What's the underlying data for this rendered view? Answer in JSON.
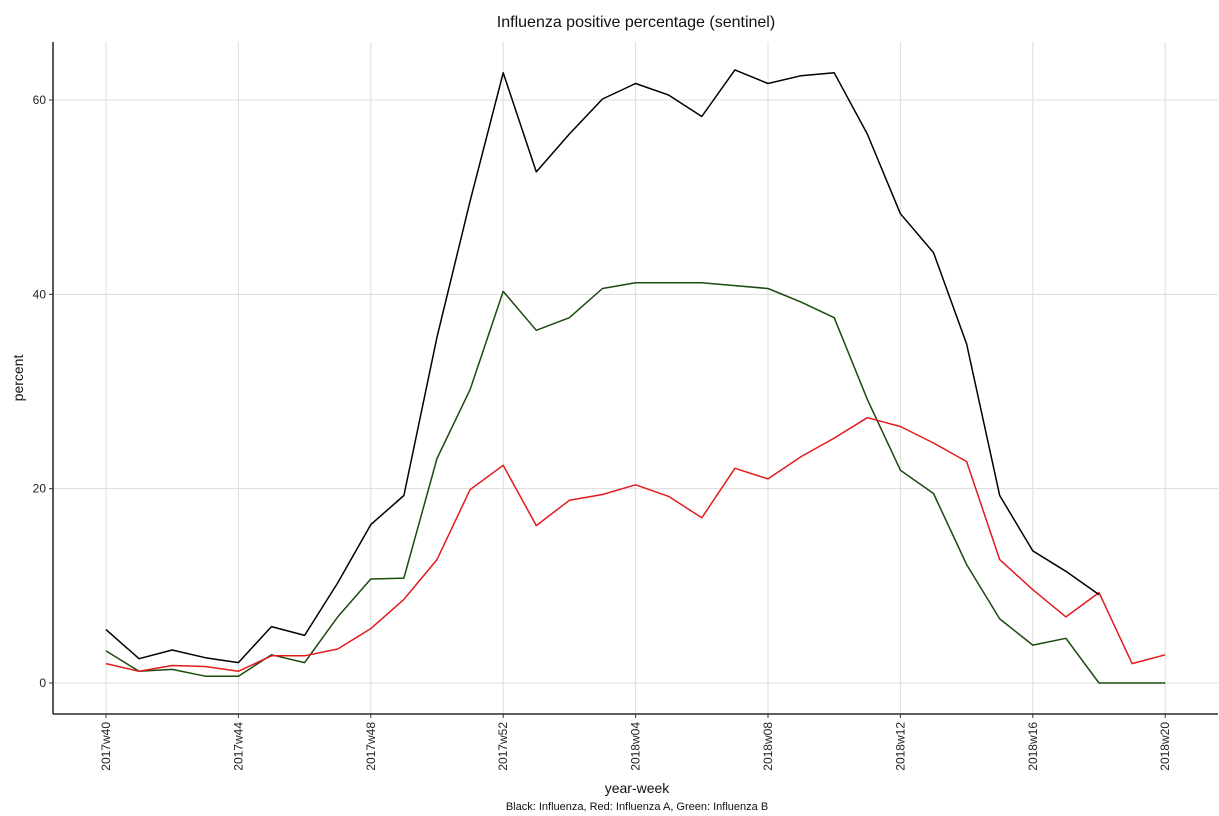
{
  "chart_data": {
    "type": "line",
    "title": "Influenza positive percentage (sentinel)",
    "xlabel": "year-week",
    "ylabel": "percent",
    "caption": "Black: Influenza,  Red: Influenza A,  Green: Influenza B",
    "grid": true,
    "legend": "none",
    "ylim": [
      -3,
      66
    ],
    "x": [
      "2017w40",
      "2017w41",
      "2017w42",
      "2017w43",
      "2017w44",
      "2017w45",
      "2017w46",
      "2017w47",
      "2017w48",
      "2017w49",
      "2017w50",
      "2017w51",
      "2017w52",
      "2018w01",
      "2018w02",
      "2018w03",
      "2018w04",
      "2018w05",
      "2018w06",
      "2018w07",
      "2018w08",
      "2018w09",
      "2018w10",
      "2018w11",
      "2018w12",
      "2018w13",
      "2018w14",
      "2018w15",
      "2018w16",
      "2018w17",
      "2018w18",
      "2018w19",
      "2018w20"
    ],
    "xticks": [
      "2017w40",
      "2017w44",
      "2017w48",
      "2017w52",
      "2018w04",
      "2018w08",
      "2018w12",
      "2018w16",
      "2018w20"
    ],
    "yticks": [
      0,
      20,
      40,
      60
    ],
    "series": [
      {
        "color": "#000000",
        "values": [
          5.5,
          2.5,
          3.4,
          2.6,
          2.1,
          5.8,
          4.9,
          10.3,
          16.3,
          19.3,
          35.6,
          49.6,
          62.8,
          52.6,
          56.5,
          60.1,
          61.7,
          60.5,
          58.3,
          63.1,
          61.7,
          62.5,
          62.8,
          56.5,
          48.3,
          44.3,
          34.9,
          19.3,
          13.6,
          11.5,
          9.1,
          null,
          null
        ]
      },
      {
        "color": "#e41a1c",
        "values": [
          2.0,
          1.2,
          1.8,
          1.7,
          1.2,
          2.8,
          2.8,
          3.5,
          5.6,
          8.6,
          12.7,
          19.9,
          22.4,
          16.2,
          18.8,
          19.4,
          20.4,
          19.2,
          17.0,
          22.1,
          21.0,
          23.3,
          25.2,
          27.3,
          26.4,
          24.7,
          22.8,
          12.7,
          9.6,
          6.8,
          9.3,
          2.0,
          2.9
        ]
      },
      {
        "color": "#1a4a0f",
        "values": [
          3.3,
          1.2,
          1.4,
          0.7,
          0.7,
          2.9,
          2.1,
          6.8,
          10.7,
          10.8,
          23.1,
          30.2,
          40.3,
          36.3,
          37.6,
          40.6,
          41.2,
          41.2,
          41.2,
          40.9,
          40.6,
          39.2,
          37.6,
          29.2,
          21.9,
          19.5,
          12.2,
          6.6,
          3.9,
          4.6,
          0.0,
          0.0,
          0.0
        ]
      }
    ]
  }
}
